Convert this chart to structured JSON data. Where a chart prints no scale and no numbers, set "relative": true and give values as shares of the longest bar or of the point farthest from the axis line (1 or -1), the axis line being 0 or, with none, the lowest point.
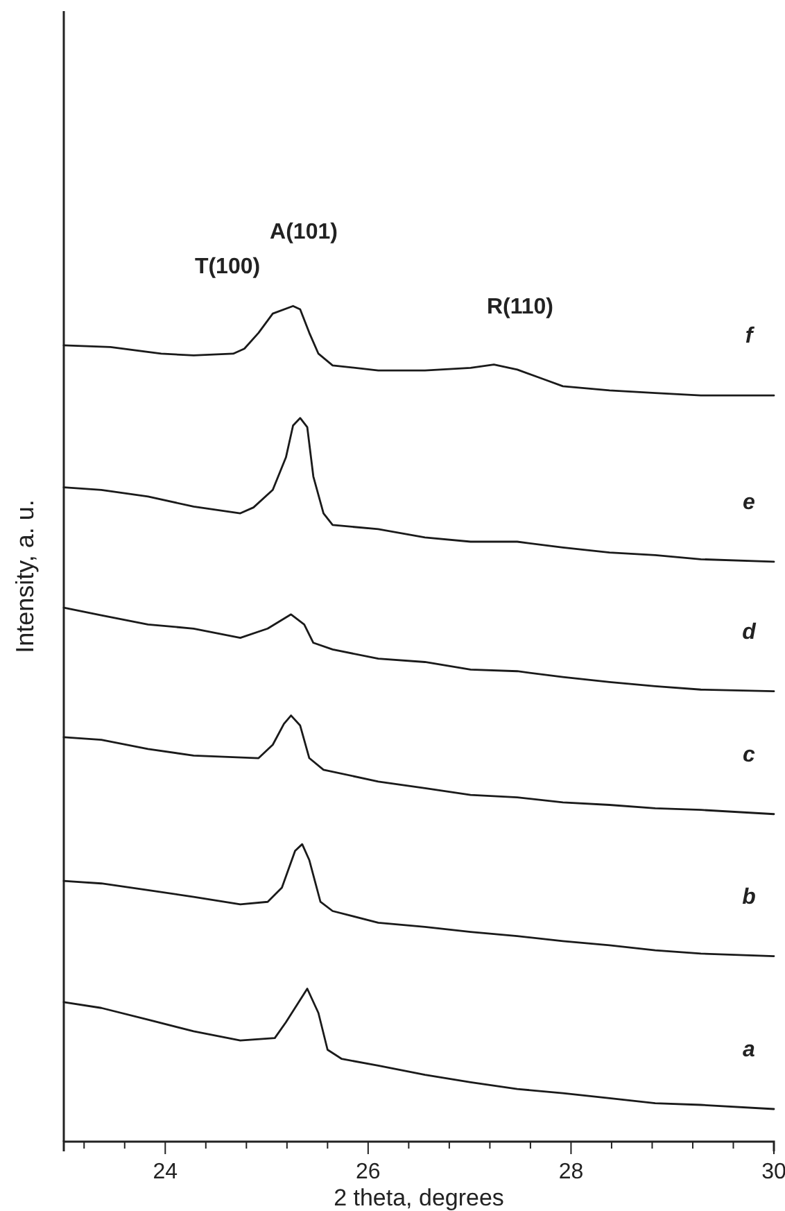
{
  "chart_data": {
    "type": "line",
    "relative": true,
    "xlabel": "2 theta, degrees",
    "ylabel": "Intensity, a. u.",
    "xlim": [
      23,
      30
    ],
    "xticks": [
      {
        "value": 23.2,
        "label": null
      },
      {
        "value": 23.6,
        "label": null
      },
      24,
      {
        "value": 24.4,
        "label": null
      },
      {
        "value": 24.8,
        "label": null
      },
      {
        "value": 25.2,
        "label": null
      },
      {
        "value": 25.6,
        "label": null
      },
      26,
      {
        "value": 26.4,
        "label": null
      },
      {
        "value": 26.8,
        "label": null
      },
      {
        "value": 27.2,
        "label": null
      },
      {
        "value": 27.6,
        "label": null
      },
      28,
      {
        "value": 28.4,
        "label": null
      },
      {
        "value": 28.8,
        "label": null
      },
      {
        "value": 29.2,
        "label": null
      },
      {
        "value": 29.6,
        "label": null
      },
      30
    ],
    "annotations": [
      "T(100)",
      "A(101)",
      "R(110)"
    ],
    "series": [
      {
        "name": "a",
        "color": "#1a1a1a",
        "x": [
          23,
          23.37,
          23.83,
          24.28,
          24.74,
          25.08,
          25.19,
          25.4,
          25.51,
          25.6,
          25.74,
          26.1,
          26.56,
          27.01,
          27.47,
          27.92,
          28.38,
          28.83,
          29.28,
          30
        ],
        "values": [
          0.167,
          0.16,
          0.146,
          0.132,
          0.121,
          0.124,
          0.143,
          0.183,
          0.154,
          0.11,
          0.099,
          0.091,
          0.08,
          0.071,
          0.063,
          0.058,
          0.052,
          0.046,
          0.044,
          0.039
        ]
      },
      {
        "name": "b",
        "color": "#1a1a1a",
        "x": [
          23,
          23.37,
          23.83,
          24.28,
          24.74,
          25.01,
          25.15,
          25.28,
          25.35,
          25.42,
          25.53,
          25.65,
          26.1,
          26.56,
          27.01,
          27.47,
          27.92,
          28.38,
          28.83,
          29.28,
          30
        ],
        "values": [
          0.312,
          0.309,
          0.301,
          0.293,
          0.284,
          0.287,
          0.304,
          0.348,
          0.356,
          0.337,
          0.287,
          0.276,
          0.262,
          0.257,
          0.251,
          0.246,
          0.24,
          0.235,
          0.229,
          0.225,
          0.222
        ]
      },
      {
        "name": "c",
        "color": "#1a1a1a",
        "x": [
          23,
          23.37,
          23.83,
          24.28,
          24.92,
          25.06,
          25.17,
          25.24,
          25.33,
          25.42,
          25.56,
          26.1,
          26.56,
          27.01,
          27.47,
          27.92,
          28.38,
          28.83,
          29.28,
          30
        ],
        "values": [
          0.484,
          0.481,
          0.47,
          0.462,
          0.459,
          0.475,
          0.5,
          0.51,
          0.498,
          0.459,
          0.445,
          0.431,
          0.423,
          0.415,
          0.412,
          0.406,
          0.403,
          0.399,
          0.397,
          0.392
        ]
      },
      {
        "name": "d",
        "color": "#1a1a1a",
        "x": [
          23,
          23.37,
          23.83,
          24.28,
          24.74,
          25.01,
          25.24,
          25.37,
          25.46,
          25.65,
          26.1,
          26.56,
          27.01,
          27.47,
          27.92,
          28.38,
          28.83,
          29.28,
          30
        ],
        "values": [
          0.639,
          0.63,
          0.619,
          0.614,
          0.603,
          0.614,
          0.631,
          0.619,
          0.597,
          0.589,
          0.578,
          0.574,
          0.565,
          0.563,
          0.556,
          0.55,
          0.545,
          0.541,
          0.539
        ]
      },
      {
        "name": "e",
        "color": "#1a1a1a",
        "x": [
          23,
          23.37,
          23.83,
          24.28,
          24.74,
          24.87,
          25.06,
          25.19,
          25.26,
          25.33,
          25.4,
          25.46,
          25.56,
          25.65,
          26.1,
          26.56,
          27.01,
          27.47,
          27.92,
          28.38,
          28.83,
          29.28,
          30
        ],
        "values": [
          0.783,
          0.78,
          0.772,
          0.76,
          0.752,
          0.759,
          0.78,
          0.819,
          0.857,
          0.866,
          0.855,
          0.796,
          0.752,
          0.738,
          0.733,
          0.723,
          0.718,
          0.718,
          0.711,
          0.705,
          0.702,
          0.697,
          0.694
        ]
      },
      {
        "name": "f",
        "color": "#1a1a1a",
        "x": [
          23,
          23.46,
          23.96,
          24.28,
          24.67,
          24.78,
          24.92,
          25.06,
          25.26,
          25.33,
          25.42,
          25.51,
          25.65,
          26.1,
          26.56,
          27.01,
          27.24,
          27.47,
          27.74,
          27.92,
          28.38,
          28.83,
          29.28,
          30
        ],
        "values": [
          0.953,
          0.951,
          0.943,
          0.941,
          0.943,
          0.949,
          0.968,
          0.991,
          1,
          0.996,
          0.968,
          0.943,
          0.929,
          0.923,
          0.923,
          0.926,
          0.93,
          0.924,
          0.912,
          0.904,
          0.899,
          0.896,
          0.893,
          0.893
        ]
      }
    ]
  }
}
